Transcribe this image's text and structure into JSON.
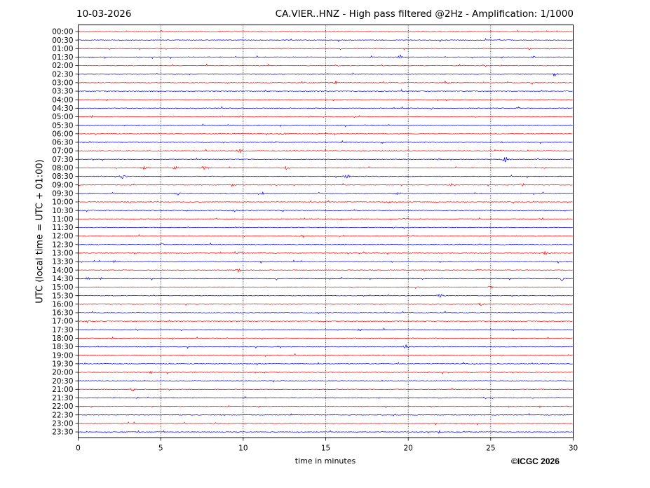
{
  "header": {
    "date": "10-03-2026",
    "title": "CA.VIER..HNZ - High pass filtered @2Hz - Amplification: 1/1000"
  },
  "footer": {
    "copyright": "©ICGC 2026"
  },
  "chart_data": {
    "type": "line",
    "title": "CA.VIER..HNZ - High pass filtered @2Hz - Amplification: 1/1000",
    "xlabel": "time in minutes",
    "ylabel": "UTC (local time = UTC + 01:00)",
    "xlim": [
      0,
      30
    ],
    "x_ticks": [
      0,
      5,
      10,
      15,
      20,
      25,
      30
    ],
    "x_gridlines": [
      5,
      10,
      15,
      20,
      25
    ],
    "grid": "vertical dotted",
    "trace_colors": [
      "#ff0000",
      "#0000ff"
    ],
    "traces": [
      {
        "label": "00:00",
        "color": "#ff0000"
      },
      {
        "label": "00:30",
        "color": "#0000ff"
      },
      {
        "label": "01:00",
        "color": "#ff0000"
      },
      {
        "label": "01:30",
        "color": "#0000ff"
      },
      {
        "label": "02:00",
        "color": "#ff0000"
      },
      {
        "label": "02:30",
        "color": "#0000ff"
      },
      {
        "label": "03:00",
        "color": "#ff0000"
      },
      {
        "label": "03:30",
        "color": "#0000ff"
      },
      {
        "label": "04:00",
        "color": "#ff0000"
      },
      {
        "label": "04:30",
        "color": "#0000ff"
      },
      {
        "label": "05:00",
        "color": "#ff0000"
      },
      {
        "label": "05:30",
        "color": "#0000ff"
      },
      {
        "label": "06:00",
        "color": "#ff0000"
      },
      {
        "label": "06:30",
        "color": "#0000ff"
      },
      {
        "label": "07:00",
        "color": "#ff0000"
      },
      {
        "label": "07:30",
        "color": "#0000ff"
      },
      {
        "label": "08:00",
        "color": "#ff0000"
      },
      {
        "label": "08:30",
        "color": "#0000ff"
      },
      {
        "label": "09:00",
        "color": "#ff0000"
      },
      {
        "label": "09:30",
        "color": "#0000ff"
      },
      {
        "label": "10:00",
        "color": "#ff0000"
      },
      {
        "label": "10:30",
        "color": "#0000ff"
      },
      {
        "label": "11:00",
        "color": "#ff0000"
      },
      {
        "label": "11:30",
        "color": "#0000ff"
      },
      {
        "label": "12:00",
        "color": "#ff0000"
      },
      {
        "label": "12:30",
        "color": "#0000ff"
      },
      {
        "label": "13:00",
        "color": "#ff0000"
      },
      {
        "label": "13:30",
        "color": "#0000ff"
      },
      {
        "label": "14:00",
        "color": "#ff0000"
      },
      {
        "label": "14:30",
        "color": "#0000ff"
      },
      {
        "label": "15:00",
        "color": "#ff0000"
      },
      {
        "label": "15:30",
        "color": "#0000ff"
      },
      {
        "label": "16:00",
        "color": "#ff0000"
      },
      {
        "label": "16:30",
        "color": "#0000ff"
      },
      {
        "label": "17:00",
        "color": "#ff0000"
      },
      {
        "label": "17:30",
        "color": "#0000ff"
      },
      {
        "label": "18:00",
        "color": "#ff0000"
      },
      {
        "label": "18:30",
        "color": "#0000ff"
      },
      {
        "label": "19:00",
        "color": "#ff0000"
      },
      {
        "label": "19:30",
        "color": "#0000ff"
      },
      {
        "label": "20:00",
        "color": "#ff0000"
      },
      {
        "label": "20:30",
        "color": "#0000ff"
      },
      {
        "label": "21:00",
        "color": "#ff0000"
      },
      {
        "label": "21:30",
        "color": "#0000ff"
      },
      {
        "label": "22:00",
        "color": "#ff0000"
      },
      {
        "label": "22:30",
        "color": "#0000ff"
      },
      {
        "label": "23:00",
        "color": "#ff0000"
      },
      {
        "label": "23:30",
        "color": "#0000ff"
      }
    ],
    "events": [
      {
        "trace": "01:00",
        "minute": 27.3,
        "strength": 0.4
      },
      {
        "trace": "01:30",
        "minute": 19.5,
        "strength": 0.7
      },
      {
        "trace": "01:30",
        "minute": 27.6,
        "strength": 0.4
      },
      {
        "trace": "02:30",
        "minute": 28.9,
        "strength": 0.5
      },
      {
        "trace": "03:00",
        "minute": 15.6,
        "strength": 0.5
      },
      {
        "trace": "03:00",
        "minute": 22.5,
        "strength": 0.4
      },
      {
        "trace": "05:00",
        "minute": 9.8,
        "strength": 0.4
      },
      {
        "trace": "06:00",
        "minute": 12.4,
        "strength": 0.5
      },
      {
        "trace": "07:00",
        "minute": 9.8,
        "strength": 0.6
      },
      {
        "trace": "07:30",
        "minute": 25.9,
        "strength": 0.8
      },
      {
        "trace": "07:30",
        "minute": 21.8,
        "strength": 0.3
      },
      {
        "trace": "08:00",
        "minute": 4.0,
        "strength": 0.5
      },
      {
        "trace": "08:00",
        "minute": 5.9,
        "strength": 0.5
      },
      {
        "trace": "08:00",
        "minute": 7.6,
        "strength": 0.6
      },
      {
        "trace": "08:00",
        "minute": 12.6,
        "strength": 0.6
      },
      {
        "trace": "08:00",
        "minute": 28.2,
        "strength": 0.4
      },
      {
        "trace": "08:30",
        "minute": 2.7,
        "strength": 0.7
      },
      {
        "trace": "08:30",
        "minute": 16.3,
        "strength": 0.7
      },
      {
        "trace": "09:00",
        "minute": 9.4,
        "strength": 0.5
      },
      {
        "trace": "09:00",
        "minute": 22.6,
        "strength": 0.4
      },
      {
        "trace": "09:00",
        "minute": 26.9,
        "strength": 0.5
      },
      {
        "trace": "09:30",
        "minute": 6.1,
        "strength": 0.6
      },
      {
        "trace": "09:30",
        "minute": 11.2,
        "strength": 0.4
      },
      {
        "trace": "09:30",
        "minute": 19.4,
        "strength": 0.5
      },
      {
        "trace": "10:00",
        "minute": 3.1,
        "strength": 0.4
      },
      {
        "trace": "10:00",
        "minute": 18.8,
        "strength": 0.4
      },
      {
        "trace": "10:30",
        "minute": 9.5,
        "strength": 0.4
      },
      {
        "trace": "11:00",
        "minute": 19.8,
        "strength": 0.5
      },
      {
        "trace": "11:00",
        "minute": 28.1,
        "strength": 0.4
      },
      {
        "trace": "12:00",
        "minute": 13.6,
        "strength": 0.5
      },
      {
        "trace": "12:30",
        "minute": 5.0,
        "strength": 0.6
      },
      {
        "trace": "13:00",
        "minute": 9.8,
        "strength": 0.5
      },
      {
        "trace": "13:00",
        "minute": 28.3,
        "strength": 0.6
      },
      {
        "trace": "13:30",
        "minute": 2.2,
        "strength": 0.4
      },
      {
        "trace": "14:00",
        "minute": 9.7,
        "strength": 0.5
      },
      {
        "trace": "14:00",
        "minute": 24.3,
        "strength": 0.4
      },
      {
        "trace": "14:30",
        "minute": 0.6,
        "strength": 0.4
      },
      {
        "trace": "14:30",
        "minute": 29.3,
        "strength": 0.6
      },
      {
        "trace": "15:00",
        "minute": 25.0,
        "strength": 0.4
      },
      {
        "trace": "15:30",
        "minute": 21.9,
        "strength": 0.7
      },
      {
        "trace": "16:00",
        "minute": 24.4,
        "strength": 0.5
      },
      {
        "trace": "17:00",
        "minute": 0.6,
        "strength": 0.5
      },
      {
        "trace": "17:30",
        "minute": 17.1,
        "strength": 0.5
      },
      {
        "trace": "18:30",
        "minute": 19.9,
        "strength": 0.7
      },
      {
        "trace": "20:00",
        "minute": 4.4,
        "strength": 0.4
      },
      {
        "trace": "21:00",
        "minute": 3.3,
        "strength": 0.5
      },
      {
        "trace": "21:30",
        "minute": 3.6,
        "strength": 0.3
      }
    ]
  }
}
